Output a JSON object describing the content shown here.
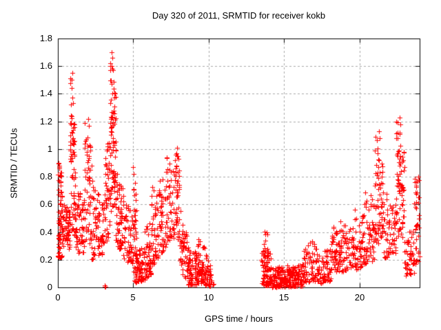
{
  "chart_data": {
    "type": "scatter",
    "title": "Day 320 of 2011, SRMTID for receiver kokb",
    "xlabel": "GPS time / hours",
    "ylabel": "SRMTID / TECUs",
    "xlim": [
      0,
      24
    ],
    "ylim": [
      0,
      1.8
    ],
    "xticks": {
      "values": [
        0,
        5,
        10,
        15,
        20
      ],
      "labels": [
        "0",
        "5",
        "10",
        "15",
        "20"
      ]
    },
    "yticks": {
      "values": [
        0,
        0.2,
        0.4,
        0.6,
        0.8,
        1.0,
        1.2,
        1.4,
        1.6,
        1.8
      ],
      "labels": [
        "0",
        "0.2",
        "0.4",
        "0.6",
        "0.8",
        "1",
        "1.2",
        "1.4",
        "1.6",
        "1.8"
      ]
    },
    "grid": {
      "on": true,
      "style": "dashed",
      "color": "#a8a8a8"
    },
    "axis_color": "#000000",
    "marker": {
      "shape": "plus",
      "color": "#ff0000",
      "size": 7
    },
    "legend": null,
    "peak_points": [
      [
        0.93,
        1.5
      ],
      [
        0.95,
        1.55
      ],
      [
        0.92,
        1.44
      ],
      [
        2.01,
        1.22
      ],
      [
        2.05,
        1.17
      ],
      [
        3.58,
        1.7
      ],
      [
        3.62,
        1.66
      ],
      [
        3.55,
        1.6
      ],
      [
        3.65,
        1.57
      ],
      [
        7.9,
        1.01
      ],
      [
        7.87,
        0.97
      ],
      [
        8.02,
        0.93
      ],
      [
        21.3,
        1.13
      ],
      [
        21.33,
        1.08
      ],
      [
        22.68,
        1.23
      ],
      [
        22.71,
        1.18
      ],
      [
        22.66,
        1.12
      ],
      [
        23.9,
        0.8
      ],
      [
        0.05,
        0.9
      ],
      [
        0.08,
        0.88
      ]
    ],
    "clusters": [
      {
        "x0": 0.0,
        "x1": 0.3,
        "ylo0": 0.22,
        "yhi0": 0.92,
        "ylo1": 0.22,
        "yhi1": 0.8,
        "n": 75,
        "bias": 1.6
      },
      {
        "x0": 0.3,
        "x1": 0.8,
        "ylo0": 0.28,
        "yhi0": 0.62,
        "ylo1": 0.28,
        "yhi1": 0.55,
        "n": 60,
        "bias": 1.2
      },
      {
        "x0": 0.8,
        "x1": 1.15,
        "ylo0": 0.35,
        "yhi0": 1.56,
        "ylo1": 0.35,
        "yhi1": 1.25,
        "n": 70,
        "bias": 1.0
      },
      {
        "x0": 1.15,
        "x1": 1.75,
        "ylo0": 0.25,
        "yhi0": 0.75,
        "ylo1": 0.25,
        "yhi1": 0.65,
        "n": 60,
        "bias": 1.3
      },
      {
        "x0": 1.75,
        "x1": 2.25,
        "ylo0": 0.3,
        "yhi0": 1.24,
        "ylo1": 0.3,
        "yhi1": 1.0,
        "n": 55,
        "bias": 1.1
      },
      {
        "x0": 2.25,
        "x1": 3.1,
        "ylo0": 0.2,
        "yhi0": 0.8,
        "ylo1": 0.25,
        "yhi1": 0.6,
        "n": 80,
        "bias": 1.4
      },
      {
        "x0": 3.08,
        "x1": 3.22,
        "ylo0": 0.0,
        "yhi0": 0.03,
        "ylo1": 0.0,
        "yhi1": 0.03,
        "n": 3,
        "bias": 1.0
      },
      {
        "x0": 3.1,
        "x1": 3.45,
        "ylo0": 0.3,
        "yhi0": 0.9,
        "ylo1": 0.4,
        "yhi1": 1.15,
        "n": 45,
        "bias": 1.2
      },
      {
        "x0": 3.45,
        "x1": 3.85,
        "ylo0": 0.5,
        "yhi0": 1.7,
        "ylo1": 0.5,
        "yhi1": 1.45,
        "n": 85,
        "bias": 1.0
      },
      {
        "x0": 3.85,
        "x1": 4.35,
        "ylo0": 0.3,
        "yhi0": 0.85,
        "ylo1": 0.25,
        "yhi1": 0.75,
        "n": 55,
        "bias": 1.3
      },
      {
        "x0": 4.35,
        "x1": 5.0,
        "ylo0": 0.2,
        "yhi0": 0.7,
        "ylo1": 0.15,
        "yhi1": 0.5,
        "n": 60,
        "bias": 1.3
      },
      {
        "x0": 5.0,
        "x1": 5.25,
        "ylo0": 0.25,
        "yhi0": 0.93,
        "ylo1": 0.2,
        "yhi1": 0.6,
        "n": 30,
        "bias": 1.1
      },
      {
        "x0": 5.05,
        "x1": 5.7,
        "ylo0": 0.03,
        "yhi0": 0.25,
        "ylo1": 0.05,
        "yhi1": 0.3,
        "n": 70,
        "bias": 1.5
      },
      {
        "x0": 5.7,
        "x1": 6.2,
        "ylo0": 0.05,
        "yhi0": 0.4,
        "ylo1": 0.1,
        "yhi1": 0.5,
        "n": 55,
        "bias": 1.5
      },
      {
        "x0": 6.2,
        "x1": 6.6,
        "ylo0": 0.15,
        "yhi0": 0.75,
        "ylo1": 0.2,
        "yhi1": 0.65,
        "n": 45,
        "bias": 1.3
      },
      {
        "x0": 6.6,
        "x1": 7.2,
        "ylo0": 0.2,
        "yhi0": 0.7,
        "ylo1": 0.3,
        "yhi1": 0.95,
        "n": 55,
        "bias": 1.3
      },
      {
        "x0": 7.2,
        "x1": 7.75,
        "ylo0": 0.3,
        "yhi0": 0.95,
        "ylo1": 0.35,
        "yhi1": 0.85,
        "n": 50,
        "bias": 1.2
      },
      {
        "x0": 7.75,
        "x1": 8.1,
        "ylo0": 0.4,
        "yhi0": 1.02,
        "ylo1": 0.3,
        "yhi1": 0.9,
        "n": 45,
        "bias": 1.0
      },
      {
        "x0": 8.1,
        "x1": 8.65,
        "ylo0": 0.1,
        "yhi0": 0.6,
        "ylo1": 0.05,
        "yhi1": 0.35,
        "n": 55,
        "bias": 1.4
      },
      {
        "x0": 8.65,
        "x1": 9.3,
        "ylo0": 0.02,
        "yhi0": 0.28,
        "ylo1": 0.02,
        "yhi1": 0.25,
        "n": 80,
        "bias": 1.6
      },
      {
        "x0": 9.3,
        "x1": 9.75,
        "ylo0": 0.03,
        "yhi0": 0.38,
        "ylo1": 0.03,
        "yhi1": 0.3,
        "n": 50,
        "bias": 1.5
      },
      {
        "x0": 9.75,
        "x1": 10.2,
        "ylo0": 0.02,
        "yhi0": 0.25,
        "ylo1": 0.0,
        "yhi1": 0.15,
        "n": 45,
        "bias": 1.5
      },
      {
        "x0": 10.25,
        "x1": 10.35,
        "ylo0": 0.0,
        "yhi0": 0.03,
        "ylo1": 0.0,
        "yhi1": 0.03,
        "n": 2,
        "bias": 1.0
      },
      {
        "x0": 13.5,
        "x1": 14.2,
        "ylo0": 0.02,
        "yhi0": 0.35,
        "ylo1": 0.01,
        "yhi1": 0.25,
        "n": 90,
        "bias": 1.7
      },
      {
        "x0": 13.7,
        "x1": 13.95,
        "ylo0": 0.25,
        "yhi0": 0.43,
        "ylo1": 0.2,
        "yhi1": 0.4,
        "n": 12,
        "bias": 1.2
      },
      {
        "x0": 14.2,
        "x1": 16.3,
        "ylo0": 0.0,
        "yhi0": 0.14,
        "ylo1": 0.01,
        "yhi1": 0.18,
        "n": 230,
        "bias": 1.5
      },
      {
        "x0": 16.3,
        "x1": 17.2,
        "ylo0": 0.03,
        "yhi0": 0.3,
        "ylo1": 0.05,
        "yhi1": 0.38,
        "n": 70,
        "bias": 1.6
      },
      {
        "x0": 17.2,
        "x1": 18.1,
        "ylo0": 0.02,
        "yhi0": 0.22,
        "ylo1": 0.05,
        "yhi1": 0.3,
        "n": 70,
        "bias": 1.5
      },
      {
        "x0": 18.1,
        "x1": 18.7,
        "ylo0": 0.1,
        "yhi0": 0.45,
        "ylo1": 0.12,
        "yhi1": 0.5,
        "n": 55,
        "bias": 1.4
      },
      {
        "x0": 18.7,
        "x1": 19.6,
        "ylo0": 0.1,
        "yhi0": 0.5,
        "ylo1": 0.15,
        "yhi1": 0.5,
        "n": 65,
        "bias": 1.4
      },
      {
        "x0": 19.6,
        "x1": 20.3,
        "ylo0": 0.12,
        "yhi0": 0.6,
        "ylo1": 0.15,
        "yhi1": 0.55,
        "n": 60,
        "bias": 1.4
      },
      {
        "x0": 20.3,
        "x1": 21.0,
        "ylo0": 0.15,
        "yhi0": 0.72,
        "ylo1": 0.2,
        "yhi1": 0.65,
        "n": 60,
        "bias": 1.4
      },
      {
        "x0": 21.0,
        "x1": 21.6,
        "ylo0": 0.3,
        "yhi0": 1.14,
        "ylo1": 0.3,
        "yhi1": 0.9,
        "n": 70,
        "bias": 1.0
      },
      {
        "x0": 21.6,
        "x1": 22.45,
        "ylo0": 0.2,
        "yhi0": 0.7,
        "ylo1": 0.25,
        "yhi1": 0.65,
        "n": 65,
        "bias": 1.3
      },
      {
        "x0": 22.45,
        "x1": 23.0,
        "ylo0": 0.35,
        "yhi0": 1.23,
        "ylo1": 0.35,
        "yhi1": 1.0,
        "n": 70,
        "bias": 1.0
      },
      {
        "x0": 23.0,
        "x1": 23.65,
        "ylo0": 0.08,
        "yhi0": 0.4,
        "ylo1": 0.1,
        "yhi1": 0.42,
        "n": 55,
        "bias": 1.4
      },
      {
        "x0": 23.65,
        "x1": 24.0,
        "ylo0": 0.12,
        "yhi0": 0.82,
        "ylo1": 0.2,
        "yhi1": 0.8,
        "n": 40,
        "bias": 1.2
      }
    ]
  }
}
